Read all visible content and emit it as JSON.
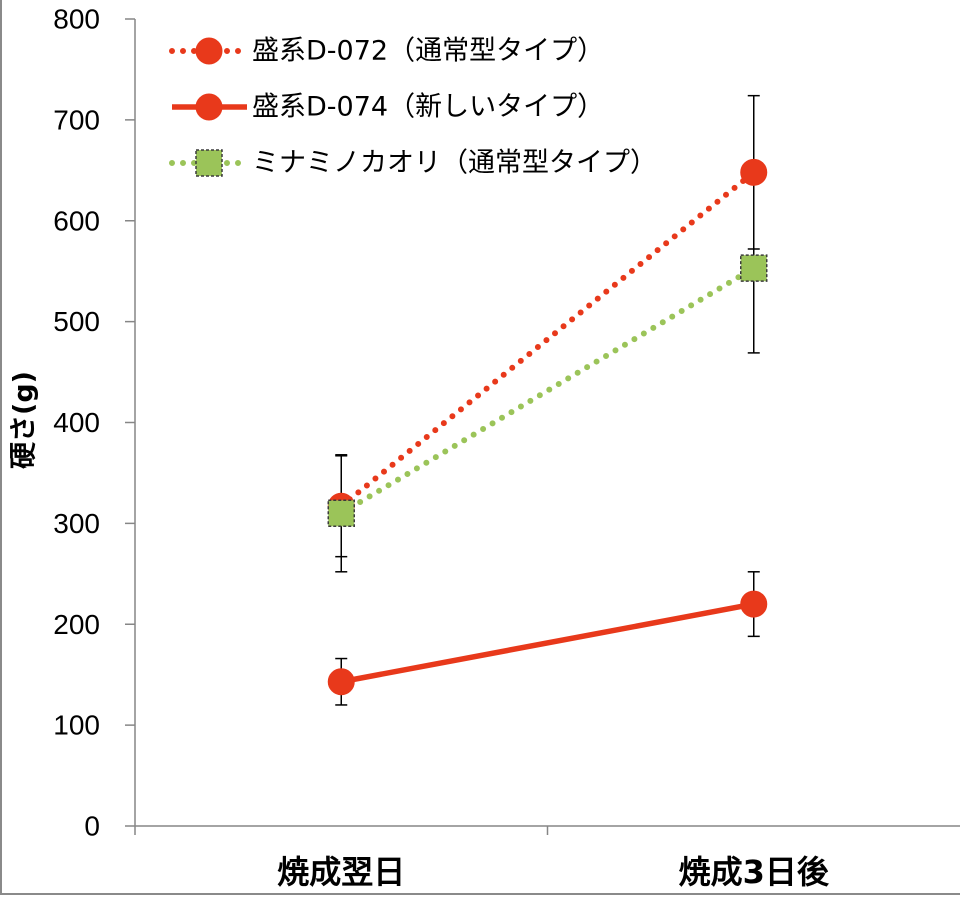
{
  "chart_data": {
    "type": "line",
    "categories": [
      "焼成翌日",
      "焼成3日後"
    ],
    "ylabel": "硬さ(g)",
    "ylim": [
      0,
      800
    ],
    "yticks": [
      0,
      100,
      200,
      300,
      400,
      500,
      600,
      700,
      800
    ],
    "grid": false,
    "legend_position": "top-left",
    "series": [
      {
        "name": "盛系D-072（通常型タイプ）",
        "values": [
          317,
          648
        ],
        "errors": [
          50,
          76
        ],
        "color": "#E8391B",
        "line_style": "dotted",
        "marker": "circle"
      },
      {
        "name": "盛系D-074（新しいタイプ）",
        "values": [
          143,
          220
        ],
        "errors": [
          23,
          32
        ],
        "color": "#E8391B",
        "line_style": "solid",
        "marker": "circle"
      },
      {
        "name": "ミナミノカオリ（通常型タイプ）",
        "values": [
          310,
          553
        ],
        "errors": [
          58,
          84
        ],
        "color": "#9BC459",
        "line_style": "dotted",
        "marker": "square"
      }
    ]
  }
}
